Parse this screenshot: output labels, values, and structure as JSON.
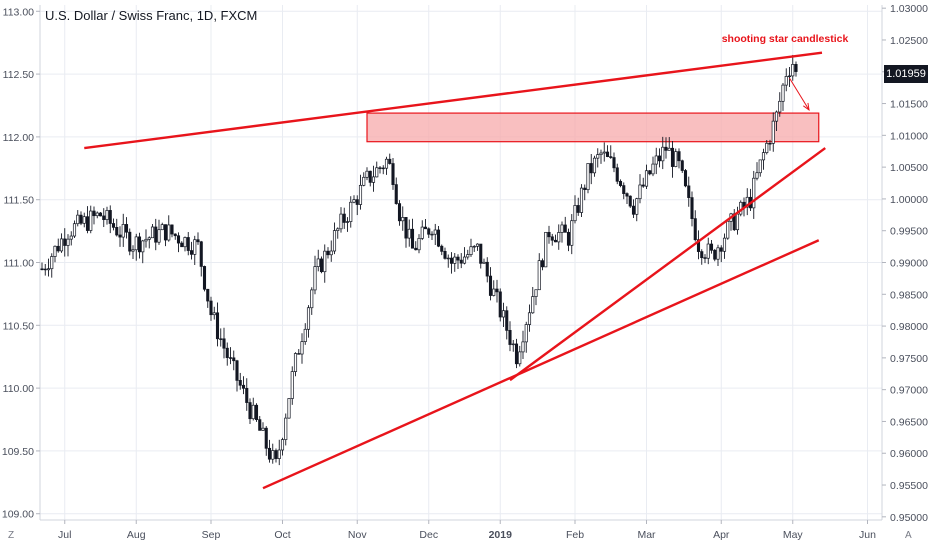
{
  "title": "U.S. Dollar / Swiss Franc, 1D, FXCM",
  "annotation": "shooting star candlestick",
  "current_price_label": "1.01959",
  "corner_left": "Z",
  "corner_right": "A",
  "colors": {
    "candle": "#131722",
    "drawing": "#e8141b",
    "zone_fill": "#f7a9ab",
    "grid": "#e9ecf2",
    "axis_text": "#4a4f5c"
  },
  "chart_data": {
    "type": "candlestick",
    "symbol": "U.S. Dollar / Swiss Franc",
    "interval": "1D",
    "source": "FXCM",
    "x_ticks": [
      "Jul",
      "Aug",
      "Sep",
      "Oct",
      "Nov",
      "Dec",
      "2019",
      "Feb",
      "Mar",
      "Apr",
      "May",
      "Jun"
    ],
    "left_axis": {
      "ticks": [
        "113.00",
        "112.50",
        "112.00",
        "111.50",
        "111.00",
        "110.50",
        "110.00",
        "109.50",
        "109.00"
      ],
      "range": [
        108.95,
        113.05
      ]
    },
    "right_axis": {
      "ticks": [
        "1.03000",
        "1.02500",
        "1.02000",
        "1.01500",
        "1.01000",
        "1.00500",
        "1.00000",
        "0.99500",
        "0.99000",
        "0.98500",
        "0.98000",
        "0.97500",
        "0.97000",
        "0.96500",
        "0.96000",
        "0.95500",
        "0.95000"
      ],
      "range": [
        0.9495,
        1.0305
      ]
    },
    "price_path_anchors": [
      [
        0,
        0.989
      ],
      [
        8,
        0.995
      ],
      [
        18,
        0.9975
      ],
      [
        28,
        0.993
      ],
      [
        38,
        0.995
      ],
      [
        48,
        0.9925
      ],
      [
        52,
        0.982
      ],
      [
        58,
        0.974
      ],
      [
        64,
        0.967
      ],
      [
        70,
        0.96
      ],
      [
        72,
        0.958
      ],
      [
        77,
        0.972
      ],
      [
        84,
        0.988
      ],
      [
        92,
        0.996
      ],
      [
        100,
        1.003
      ],
      [
        106,
        1.006
      ],
      [
        108,
        1.004
      ],
      [
        110,
        0.998
      ],
      [
        114,
        0.992
      ],
      [
        120,
        0.996
      ],
      [
        126,
        0.99
      ],
      [
        134,
        0.992
      ],
      [
        142,
        0.981
      ],
      [
        146,
        0.9755
      ],
      [
        150,
        0.983
      ],
      [
        156,
        0.995
      ],
      [
        162,
        0.994
      ],
      [
        168,
        1.004
      ],
      [
        172,
        1.007
      ],
      [
        176,
        1.005
      ],
      [
        182,
        0.999
      ],
      [
        188,
        1.005
      ],
      [
        192,
        1.008
      ],
      [
        196,
        1.005
      ],
      [
        202,
        0.993
      ],
      [
        206,
        0.991
      ],
      [
        212,
        0.996
      ],
      [
        218,
        1.0
      ],
      [
        222,
        1.007
      ],
      [
        226,
        1.013
      ],
      [
        229,
        1.02
      ],
      [
        231,
        1.0215
      ],
      [
        232,
        1.0196
      ]
    ],
    "drawings": {
      "resistance_line": {
        "from": [
          13,
          1.008
        ],
        "to": [
          240,
          1.023
        ]
      },
      "upper_support_line": {
        "from": [
          144,
          0.9715
        ],
        "to": [
          241,
          1.008
        ]
      },
      "lower_support_line": {
        "from": [
          68,
          0.9545
        ],
        "to": [
          239,
          0.9935
        ]
      },
      "supply_zone": {
        "from_bar": 100,
        "to_bar": 239,
        "top": 1.0135,
        "bottom": 1.009
      },
      "arrow": {
        "from": [
          230,
          1.019
        ],
        "to": [
          236,
          1.014
        ]
      }
    }
  }
}
